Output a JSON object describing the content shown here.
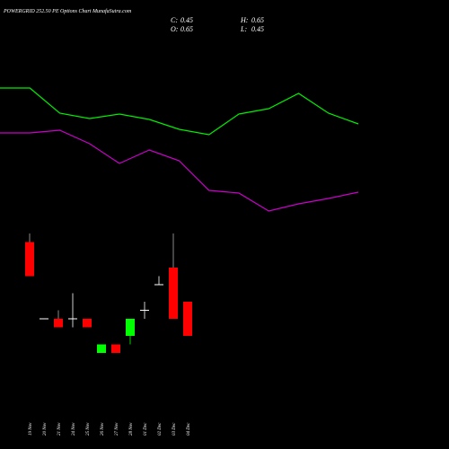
{
  "header": {
    "title": "POWERGRID 252.50 PE Options Chart MunafaSutra.com",
    "ohlc": [
      {
        "label": "C:",
        "value": 0.45
      },
      {
        "label": "H:",
        "value": 0.65
      },
      {
        "label": "O:",
        "value": 0.65
      },
      {
        "label": "L:",
        "value": 0.45
      }
    ]
  },
  "chart_data": [
    {
      "type": "line",
      "categories": [
        null,
        null,
        null,
        null,
        null,
        null,
        null,
        null,
        null,
        null,
        null,
        null,
        null
      ],
      "series": [
        {
          "color": "#00ee00",
          "values": [
            402,
            402,
            374,
            368,
            373,
            367,
            356,
            350,
            373,
            379,
            396,
            374,
            362
          ]
        },
        {
          "color": "#cc00cc",
          "values": [
            352,
            352,
            355,
            340,
            318,
            333,
            321,
            288,
            285,
            265,
            273,
            279,
            286
          ]
        }
      ]
    },
    {
      "type": "candlestick",
      "categories": [
        "19 Nov",
        "20 Nov",
        "21 Nov",
        "24 Nov",
        "25 Nov",
        "26 Nov",
        "27 Nov",
        "28 Nov",
        "01 Dec",
        "02 Dec",
        "03 Dec",
        "04 Dec"
      ],
      "open": [
        1.0,
        0.55,
        0.55,
        0.55,
        0.55,
        0.35,
        0.4,
        0.45,
        0.6,
        0.75,
        0.85,
        0.65
      ],
      "high": [
        1.05,
        0.55,
        0.6,
        0.7,
        0.55,
        0.4,
        0.4,
        0.55,
        0.65,
        0.8,
        1.05,
        0.65
      ],
      "low": [
        0.8,
        0.55,
        0.5,
        0.5,
        0.5,
        0.35,
        0.35,
        0.4,
        0.55,
        0.75,
        0.55,
        0.45
      ],
      "close": [
        0.8,
        0.55,
        0.5,
        0.55,
        0.5,
        0.4,
        0.35,
        0.55,
        0.6,
        0.75,
        0.55,
        0.45
      ],
      "up_color": "#00ff00",
      "down_color": "#ff0000",
      "flat_color": "#ffffff"
    }
  ]
}
